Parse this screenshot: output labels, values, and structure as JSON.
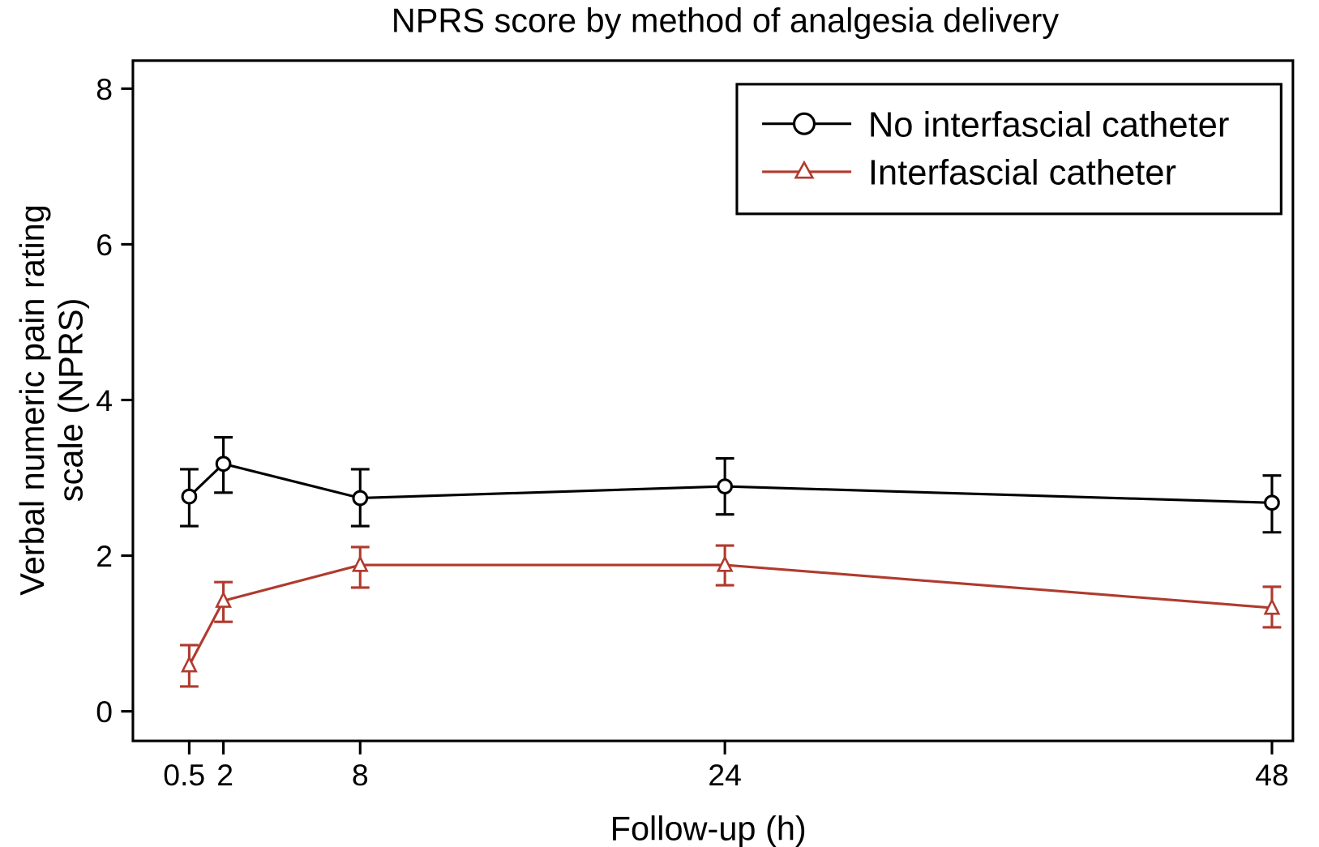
{
  "chart_data": {
    "type": "line",
    "title": "NPRS score by method of analgesia delivery",
    "xlabel": "Follow-up (h)",
    "ylabel_lines": [
      "Verbal numeric pain rating",
      "scale (NPRS)"
    ],
    "x": [
      0.5,
      2,
      8,
      24,
      48
    ],
    "x_ticks": [
      0.5,
      2,
      8,
      24,
      48
    ],
    "x_tick_labels": [
      "0.5",
      "2",
      "8",
      "24",
      "48"
    ],
    "y_ticks": [
      0,
      2,
      4,
      6,
      8
    ],
    "y_tick_labels": [
      "0",
      "2",
      "4",
      "6",
      "8"
    ],
    "xlim": [
      -1.97,
      48.92
    ],
    "ylim": [
      -0.38,
      8.36
    ],
    "grid": false,
    "legend_position": "top-right",
    "error_bars": true,
    "series": [
      {
        "name": "No interfascial catheter",
        "color": "#000000",
        "marker": "circle",
        "values": [
          2.76,
          3.18,
          2.74,
          2.89,
          2.68
        ],
        "upper": [
          3.11,
          3.52,
          3.11,
          3.25,
          3.03
        ],
        "lower": [
          2.38,
          2.81,
          2.38,
          2.53,
          2.3
        ]
      },
      {
        "name": "Interfascial catheter",
        "color": "#b03a2e",
        "marker": "triangle",
        "values": [
          0.59,
          1.42,
          1.88,
          1.88,
          1.33
        ],
        "upper": [
          0.85,
          1.66,
          2.11,
          2.13,
          1.6
        ],
        "lower": [
          0.32,
          1.15,
          1.59,
          1.62,
          1.08
        ]
      }
    ]
  }
}
